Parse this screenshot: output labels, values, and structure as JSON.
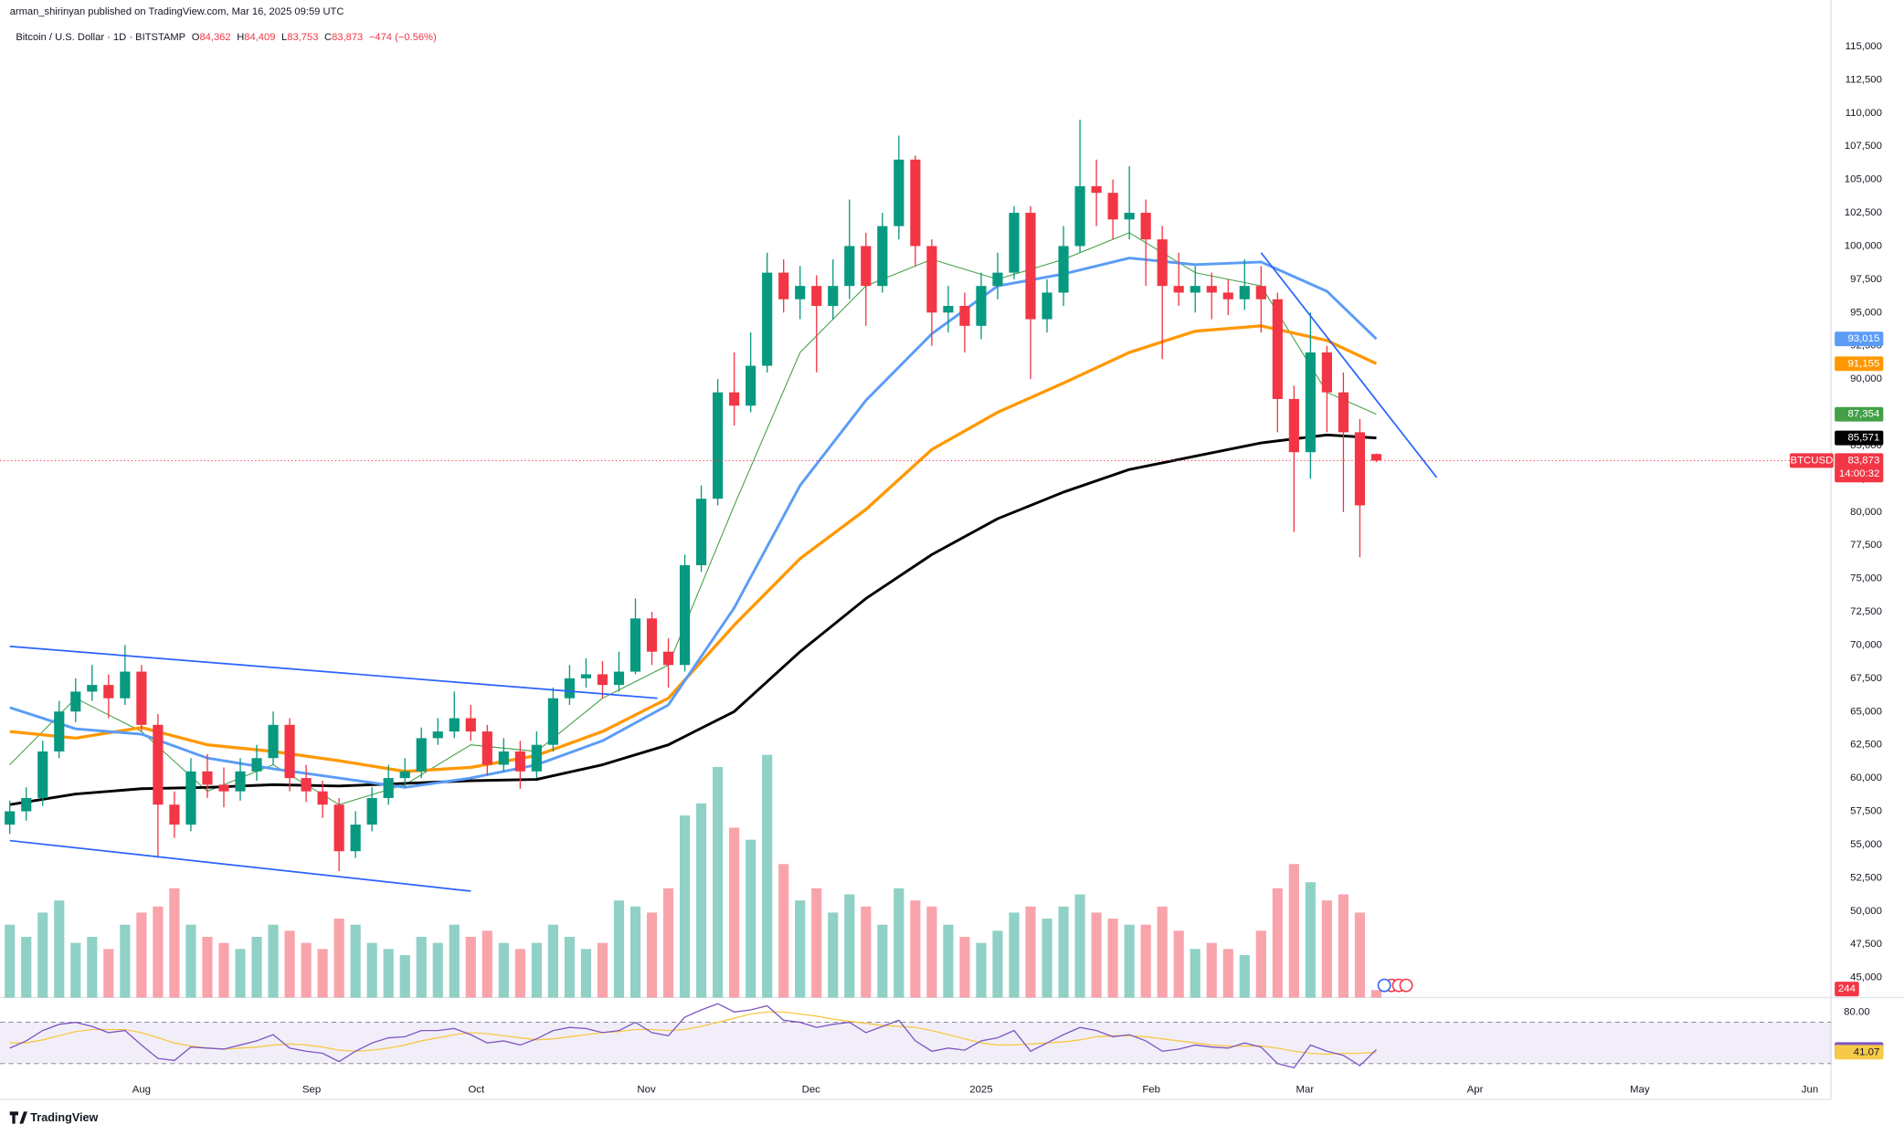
{
  "header": {
    "published": "arman_shirinyan published on TradingView.com, Mar 16, 2025 09:59 UTC",
    "symbol": "Bitcoin / U.S. Dollar · 1D · BITSTAMP",
    "ohlc": [
      {
        "key": "O",
        "value": "84,362"
      },
      {
        "key": "H",
        "value": "84,409"
      },
      {
        "key": "L",
        "value": "83,753"
      },
      {
        "key": "C",
        "value": "83,873"
      }
    ],
    "change": "−474 (−0.56%)"
  },
  "footer": "TradingView",
  "chart_data": {
    "type": "candlestick",
    "up_color": "#089981",
    "down_color": "#f23645",
    "x": [
      0,
      3,
      6,
      9,
      12,
      15,
      18,
      21,
      24,
      27,
      30,
      33,
      36,
      39,
      42,
      45,
      48,
      51,
      54,
      57,
      60,
      63,
      66,
      69,
      72,
      75,
      78,
      81,
      84,
      87,
      90,
      93,
      96,
      99,
      102,
      105,
      108,
      111,
      114,
      117,
      120,
      123,
      126,
      129,
      132,
      135,
      138,
      141,
      144,
      147,
      150,
      153,
      156,
      159,
      162,
      165,
      168,
      171,
      174,
      177,
      180,
      183,
      186,
      189,
      192,
      195,
      198,
      201,
      204,
      207,
      210,
      213,
      216,
      219,
      222,
      225,
      228,
      231,
      234,
      237,
      240,
      243,
      246,
      249
    ],
    "open": [
      56500,
      57500,
      58500,
      62000,
      65000,
      66500,
      67000,
      66000,
      68000,
      64000,
      58000,
      56500,
      60500,
      59500,
      59000,
      60500,
      61500,
      64000,
      60000,
      59000,
      58000,
      54500,
      56500,
      58500,
      60000,
      60500,
      63000,
      63500,
      64500,
      63500,
      61000,
      62000,
      60500,
      62500,
      66000,
      67500,
      67800,
      67000,
      68000,
      72000,
      69500,
      68500,
      76000,
      81000,
      89000,
      88000,
      91000,
      98000,
      96000,
      97000,
      95500,
      97000,
      100000,
      97000,
      101500,
      106500,
      100000,
      95000,
      95500,
      94000,
      97000,
      98000,
      102500,
      94500,
      96500,
      100000,
      104500,
      104000,
      102000,
      102500,
      100500,
      97000,
      96500,
      97000,
      96500,
      96000,
      97000,
      96000,
      88500,
      84500,
      92000,
      89000,
      86000,
      84362
    ],
    "high": [
      58300,
      59300,
      62800,
      65800,
      67500,
      68500,
      67800,
      70000,
      68500,
      64800,
      59000,
      61500,
      61800,
      60800,
      61500,
      62500,
      65000,
      64500,
      61000,
      59800,
      58500,
      57500,
      59300,
      61000,
      61500,
      63800,
      64500,
      66500,
      65500,
      64000,
      63000,
      62800,
      63500,
      66800,
      68500,
      69000,
      68800,
      69500,
      73500,
      72500,
      70500,
      76800,
      82000,
      90000,
      92000,
      93500,
      99500,
      99000,
      98500,
      97800,
      99000,
      103500,
      101000,
      102500,
      108300,
      106800,
      100500,
      97000,
      96500,
      98000,
      99500,
      103000,
      103000,
      97500,
      101500,
      109500,
      106500,
      105000,
      106000,
      103500,
      101500,
      99500,
      98500,
      98000,
      97500,
      99000,
      98500,
      96500,
      89500,
      95000,
      92500,
      90500,
      87000,
      84409
    ],
    "low": [
      55800,
      56800,
      57900,
      61500,
      64200,
      65800,
      64500,
      65500,
      63500,
      54000,
      55500,
      56000,
      58500,
      57800,
      58300,
      59800,
      61000,
      59000,
      58200,
      57000,
      53000,
      54000,
      56000,
      58000,
      59300,
      60000,
      62500,
      63000,
      62800,
      60200,
      60500,
      59200,
      60000,
      62000,
      65500,
      66800,
      66000,
      66500,
      67800,
      68500,
      66800,
      68000,
      75500,
      80500,
      86500,
      87500,
      90500,
      95000,
      94500,
      90500,
      94500,
      96000,
      94000,
      96500,
      100500,
      98500,
      92500,
      93500,
      92000,
      93000,
      96000,
      97500,
      90000,
      93500,
      95500,
      99500,
      101500,
      100500,
      100500,
      97000,
      91500,
      95500,
      95000,
      94500,
      94800,
      95200,
      93500,
      86000,
      78500,
      82500,
      86000,
      80000,
      76600,
      83753
    ],
    "close": [
      57500,
      58500,
      62000,
      65000,
      66500,
      67000,
      66000,
      68000,
      64000,
      58000,
      56500,
      60500,
      59500,
      59000,
      60500,
      61500,
      64000,
      60000,
      59000,
      58000,
      54500,
      56500,
      58500,
      60000,
      60500,
      63000,
      63500,
      64500,
      63500,
      61000,
      62000,
      60500,
      62500,
      66000,
      67500,
      67800,
      67000,
      68000,
      72000,
      69500,
      68500,
      76000,
      81000,
      89000,
      88000,
      91000,
      98000,
      96000,
      97000,
      95500,
      97000,
      100000,
      97000,
      101500,
      106500,
      100000,
      95000,
      95500,
      94000,
      97000,
      98000,
      102500,
      94500,
      96500,
      100000,
      104500,
      104000,
      102000,
      102500,
      100500,
      97000,
      96500,
      97000,
      96500,
      96000,
      97000,
      96000,
      88500,
      84500,
      92000,
      89000,
      86000,
      80500,
      83873
    ],
    "volume": [
      2400,
      2000,
      2800,
      3200,
      1800,
      2000,
      1600,
      2400,
      2800,
      3000,
      3600,
      2400,
      2000,
      1800,
      1600,
      2000,
      2400,
      2200,
      1800,
      1600,
      2600,
      2400,
      1800,
      1600,
      1400,
      2000,
      1800,
      2400,
      2000,
      2200,
      1800,
      1600,
      1800,
      2400,
      2000,
      1600,
      1800,
      3200,
      3000,
      2800,
      3600,
      6000,
      6400,
      7600,
      5600,
      5200,
      8000,
      4400,
      3200,
      3600,
      2800,
      3400,
      3000,
      2400,
      3600,
      3200,
      3000,
      2400,
      2000,
      1800,
      2200,
      2800,
      3000,
      2600,
      3000,
      3400,
      2800,
      2600,
      2400,
      2400,
      3000,
      2200,
      1600,
      1800,
      1600,
      1400,
      2200,
      3600,
      4400,
      3800,
      3200,
      3400,
      2800,
      244
    ],
    "xlim": [
      -1.77,
      331.86
    ],
    "xticks": [
      {
        "value": 24,
        "label": "Aug"
      },
      {
        "value": 55,
        "label": "Sep"
      },
      {
        "value": 85,
        "label": "Oct"
      },
      {
        "value": 116,
        "label": "Nov"
      },
      {
        "value": 146,
        "label": "Dec"
      },
      {
        "value": 177,
        "label": "2025"
      },
      {
        "value": 208,
        "label": "Feb"
      },
      {
        "value": 236,
        "label": "Mar"
      },
      {
        "value": 267,
        "label": "Apr"
      },
      {
        "value": 297,
        "label": "May"
      },
      {
        "value": 328,
        "label": "Jun"
      }
    ],
    "ylim": [
      43500,
      118500
    ],
    "yticks": [
      {
        "value": 45000,
        "label": "45,000"
      },
      {
        "value": 47500,
        "label": "47,500"
      },
      {
        "value": 50000,
        "label": "50,000"
      },
      {
        "value": 52500,
        "label": "52,500"
      },
      {
        "value": 55000,
        "label": "55,000"
      },
      {
        "value": 57500,
        "label": "57,500"
      },
      {
        "value": 60000,
        "label": "60,000"
      },
      {
        "value": 62500,
        "label": "62,500"
      },
      {
        "value": 65000,
        "label": "65,000"
      },
      {
        "value": 67500,
        "label": "67,500"
      },
      {
        "value": 70000,
        "label": "70,000"
      },
      {
        "value": 72500,
        "label": "72,500"
      },
      {
        "value": 75000,
        "label": "75,000"
      },
      {
        "value": 77500,
        "label": "77,500"
      },
      {
        "value": 80000,
        "label": "80,000"
      },
      {
        "value": 82500,
        "label": "82,500"
      },
      {
        "value": 85000,
        "label": "85,000"
      },
      {
        "value": 87500,
        "label": "87,500"
      },
      {
        "value": 90000,
        "label": "90,000"
      },
      {
        "value": 92500,
        "label": "92,500"
      },
      {
        "value": 95000,
        "label": "95,000"
      },
      {
        "value": 97500,
        "label": "97,500"
      },
      {
        "value": 100000,
        "label": "100,000"
      },
      {
        "value": 102500,
        "label": "102,500"
      },
      {
        "value": 105000,
        "label": "105,000"
      },
      {
        "value": 107500,
        "label": "107,500"
      },
      {
        "value": 110000,
        "label": "110,000"
      },
      {
        "value": 112500,
        "label": "112,500"
      },
      {
        "value": 115000,
        "label": "115,000"
      }
    ],
    "moving_averages": [
      {
        "color": "#43a047",
        "width": 0.8,
        "x": [
          0,
          12,
          24,
          36,
          48,
          60,
          72,
          84,
          96,
          108,
          120,
          132,
          144,
          156,
          168,
          180,
          192,
          204,
          216,
          228,
          240,
          249
        ],
        "values": [
          61000,
          66000,
          63500,
          59000,
          61000,
          58000,
          59500,
          62500,
          62000,
          66000,
          68500,
          80500,
          92000,
          97000,
          99000,
          97500,
          99000,
          101000,
          98000,
          97000,
          89000,
          87354
        ],
        "last_label": "87,354"
      },
      {
        "color": "#000000",
        "width": 2.2,
        "x": [
          0,
          12,
          24,
          36,
          48,
          60,
          72,
          84,
          96,
          108,
          120,
          132,
          144,
          156,
          168,
          180,
          192,
          204,
          216,
          228,
          240,
          249
        ],
        "values": [
          58000,
          58800,
          59200,
          59300,
          59500,
          59400,
          59600,
          59800,
          59900,
          61000,
          62500,
          65000,
          69500,
          73500,
          76800,
          79500,
          81500,
          83200,
          84200,
          85200,
          85800,
          85571
        ],
        "last_label": "85,571"
      },
      {
        "color": "#ff9800",
        "width": 2.5,
        "x": [
          0,
          12,
          24,
          36,
          48,
          60,
          72,
          84,
          96,
          108,
          120,
          132,
          144,
          156,
          168,
          180,
          192,
          204,
          216,
          228,
          240,
          249
        ],
        "values": [
          63500,
          63000,
          63800,
          62500,
          62000,
          61300,
          60500,
          60800,
          61700,
          63500,
          66000,
          71500,
          76500,
          80200,
          84700,
          87500,
          89700,
          92000,
          93600,
          94000,
          92900,
          91155
        ],
        "last_label": "91,155"
      },
      {
        "color": "#5b9cf6",
        "width": 2.2,
        "x": [
          0,
          12,
          24,
          36,
          48,
          60,
          72,
          84,
          96,
          108,
          120,
          132,
          144,
          156,
          168,
          180,
          192,
          204,
          216,
          228,
          240,
          249
        ],
        "values": [
          65300,
          63700,
          63300,
          61500,
          60700,
          60000,
          59300,
          60000,
          61000,
          62800,
          65500,
          72800,
          82000,
          88400,
          93400,
          97000,
          97900,
          99100,
          98600,
          98800,
          96600,
          93015
        ],
        "last_label": "93,015"
      }
    ],
    "trendlines": [
      {
        "color": "#2962ff",
        "x": [
          0,
          118
        ],
        "values": [
          69900,
          66000
        ]
      },
      {
        "color": "#2962ff",
        "x": [
          0,
          84
        ],
        "values": [
          55300,
          51500
        ]
      },
      {
        "color": "#2962ff",
        "x": [
          228,
          260
        ],
        "values": [
          99500,
          82600
        ]
      }
    ],
    "symbol_label": "BTCUSD",
    "last_price_label": "83,873",
    "countdown": "14:00:32",
    "rsi": {
      "color": "#7e57c2",
      "ma_color": "#f7c948",
      "values": [
        45,
        52,
        62,
        68,
        70,
        66,
        60,
        62,
        48,
        35,
        33,
        46,
        45,
        44,
        48,
        52,
        58,
        45,
        42,
        40,
        32,
        42,
        50,
        55,
        56,
        62,
        62,
        64,
        58,
        50,
        52,
        48,
        54,
        62,
        65,
        64,
        60,
        62,
        70,
        60,
        57,
        75,
        82,
        88,
        80,
        82,
        86,
        72,
        70,
        65,
        68,
        70,
        60,
        66,
        72,
        52,
        42,
        45,
        43,
        52,
        55,
        62,
        42,
        50,
        58,
        65,
        62,
        56,
        58,
        52,
        42,
        44,
        48,
        46,
        45,
        50,
        46,
        30,
        26,
        48,
        42,
        38,
        28,
        43.62
      ],
      "ma_values": [
        50,
        50,
        53,
        57,
        61,
        63,
        63,
        63,
        60,
        55,
        50,
        47,
        45,
        44,
        45,
        46,
        48,
        49,
        48,
        46,
        43,
        42,
        43,
        45,
        48,
        52,
        55,
        58,
        60,
        59,
        57,
        55,
        53,
        54,
        56,
        58,
        60,
        61,
        63,
        63,
        62,
        63,
        66,
        70,
        74,
        78,
        80,
        80,
        78,
        76,
        73,
        71,
        69,
        67,
        66,
        65,
        62,
        58,
        54,
        50,
        48,
        48,
        49,
        50,
        51,
        53,
        56,
        57,
        57,
        56,
        54,
        52,
        50,
        48,
        47,
        47,
        47,
        45,
        42,
        40,
        39,
        40,
        40,
        41.07
      ],
      "ylim": [
        0,
        94
      ],
      "yticks": [
        {
          "value": 80,
          "label": "80.00"
        }
      ],
      "bands": [
        30,
        70
      ]
    }
  }
}
